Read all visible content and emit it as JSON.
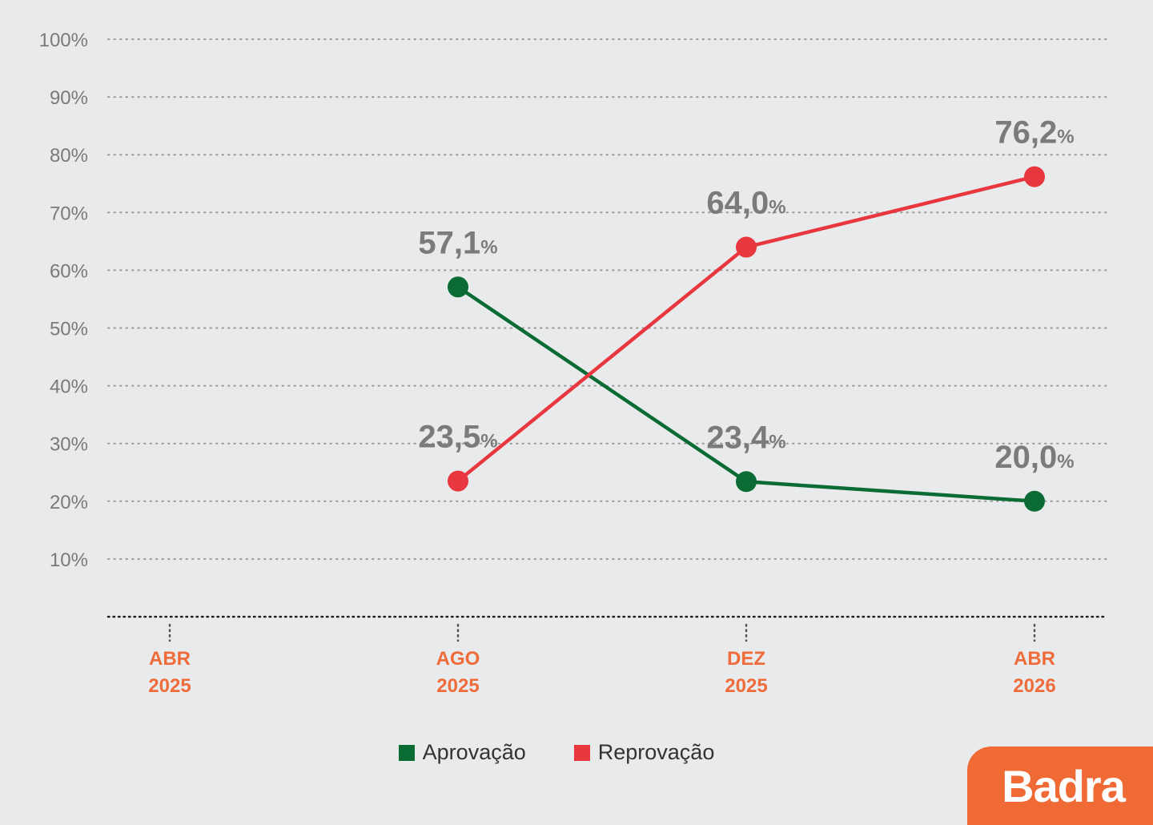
{
  "brand": {
    "logo_text": "Badra",
    "logo_color": "#f06a35"
  },
  "chart_data": {
    "type": "line",
    "title": "",
    "xlabel": "",
    "ylabel": "",
    "ylim": [
      0,
      100
    ],
    "y_ticks": [
      "100%",
      "90%",
      "80%",
      "70%",
      "60%",
      "50%",
      "40%",
      "30%",
      "20%",
      "10%"
    ],
    "y_tick_values": [
      100,
      90,
      80,
      70,
      60,
      50,
      40,
      30,
      20,
      10
    ],
    "grid": "horizontal-dotted",
    "categories": [
      {
        "line1": "ABR",
        "line2": "2025"
      },
      {
        "line1": "AGO",
        "line2": "2025"
      },
      {
        "line1": "DEZ",
        "line2": "2025"
      },
      {
        "line1": "ABR",
        "line2": "2026"
      }
    ],
    "series": [
      {
        "name": "Aprovação",
        "color": "#0b6b34",
        "values": [
          null,
          57.1,
          23.4,
          20.0
        ],
        "labels": [
          null,
          "57,1",
          "23,4",
          "20,0"
        ]
      },
      {
        "name": "Reprovação",
        "color": "#e8373f",
        "values": [
          null,
          23.5,
          64.0,
          76.2
        ],
        "labels": [
          null,
          "23,5",
          "64,0",
          "76,2"
        ]
      }
    ],
    "unit_suffix": "%",
    "legend_position": "bottom-center"
  }
}
